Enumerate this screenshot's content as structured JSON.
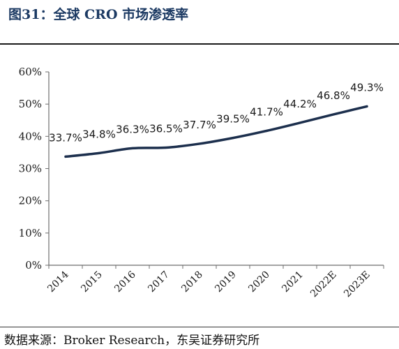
{
  "figure": {
    "title": "图31：全球 CRO 市场渗透率",
    "source": "数据来源：Broker Research，东吴证券研究所"
  },
  "chart_data": {
    "type": "line",
    "title": "",
    "xlabel": "",
    "ylabel": "",
    "categories": [
      "2014",
      "2015",
      "2016",
      "2017",
      "2018",
      "2019",
      "2020",
      "2021",
      "2022E",
      "2023E"
    ],
    "series": [
      {
        "values": [
          33.7,
          34.8,
          36.3,
          36.5,
          37.7,
          39.5,
          41.7,
          44.2,
          46.8,
          49.3
        ],
        "data_labels": [
          "33.7%",
          "34.8%",
          "36.3%",
          "36.5%",
          "37.7%",
          "39.5%",
          "41.7%",
          "44.2%",
          "46.8%",
          "49.3%"
        ],
        "color": "#1c2f4d"
      }
    ],
    "ylim": [
      0,
      60
    ],
    "yticks": [
      0,
      10,
      20,
      30,
      40,
      50,
      60
    ],
    "ytick_labels": [
      "0%",
      "10%",
      "20%",
      "30%",
      "40%",
      "50%",
      "60%"
    ],
    "grid": false,
    "legend": "none"
  }
}
